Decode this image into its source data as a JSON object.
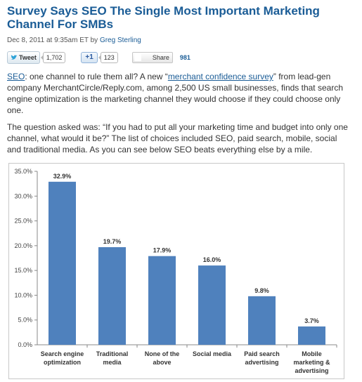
{
  "article": {
    "title": "Survey Says SEO The Single Most Important Marketing Channel For SMBs",
    "byline_date": "Dec 8, 2011 at 9:35am ET by ",
    "byline_author": "Greg Sterling"
  },
  "share_bar": {
    "tweet_label": "Tweet",
    "tweet_count": "1,702",
    "plusone_label": "+1",
    "plusone_count": "123",
    "share_label": "Share",
    "share_count": "981"
  },
  "body": {
    "p1_link_seo": "SEO",
    "p1_text_a": ": one channel to rule them all? A new “",
    "p1_link_survey": "merchant confidence survey",
    "p1_text_b": "” from lead-gen company MerchantCircle/Reply.com, among 2,500 US small businesses, finds that search engine optimization is the marketing channel they would choose if they could choose only one.",
    "p2_text": "The question asked was: “If you had to put all your marketing time and budget into only one channel, what would it be?” The list of choices included SEO, paid search, mobile, social and traditional media. As you can see below SEO beats everything else by a mile."
  },
  "chart_data": {
    "type": "bar",
    "categories": [
      [
        "Search engine",
        "optimization"
      ],
      [
        "Traditional",
        "media"
      ],
      [
        "None of the",
        "above"
      ],
      [
        "Social media"
      ],
      [
        "Paid search",
        "advertising"
      ],
      [
        "Mobile",
        "marketing &",
        "advertising"
      ]
    ],
    "values": [
      32.9,
      19.7,
      17.9,
      16.0,
      9.8,
      3.7
    ],
    "data_labels": [
      "32.9%",
      "19.7%",
      "17.9%",
      "16.0%",
      "9.8%",
      "3.7%"
    ],
    "yticks": [
      0,
      5,
      10,
      15,
      20,
      25,
      30,
      35
    ],
    "ytick_labels": [
      "0.0%",
      "5.0%",
      "10.0%",
      "15.0%",
      "20.0%",
      "25.0%",
      "30.0%",
      "35.0%"
    ],
    "ylim": [
      0,
      35
    ],
    "bar_color": "#4f81bd",
    "title": "",
    "xlabel": "",
    "ylabel": "",
    "grid": false
  }
}
